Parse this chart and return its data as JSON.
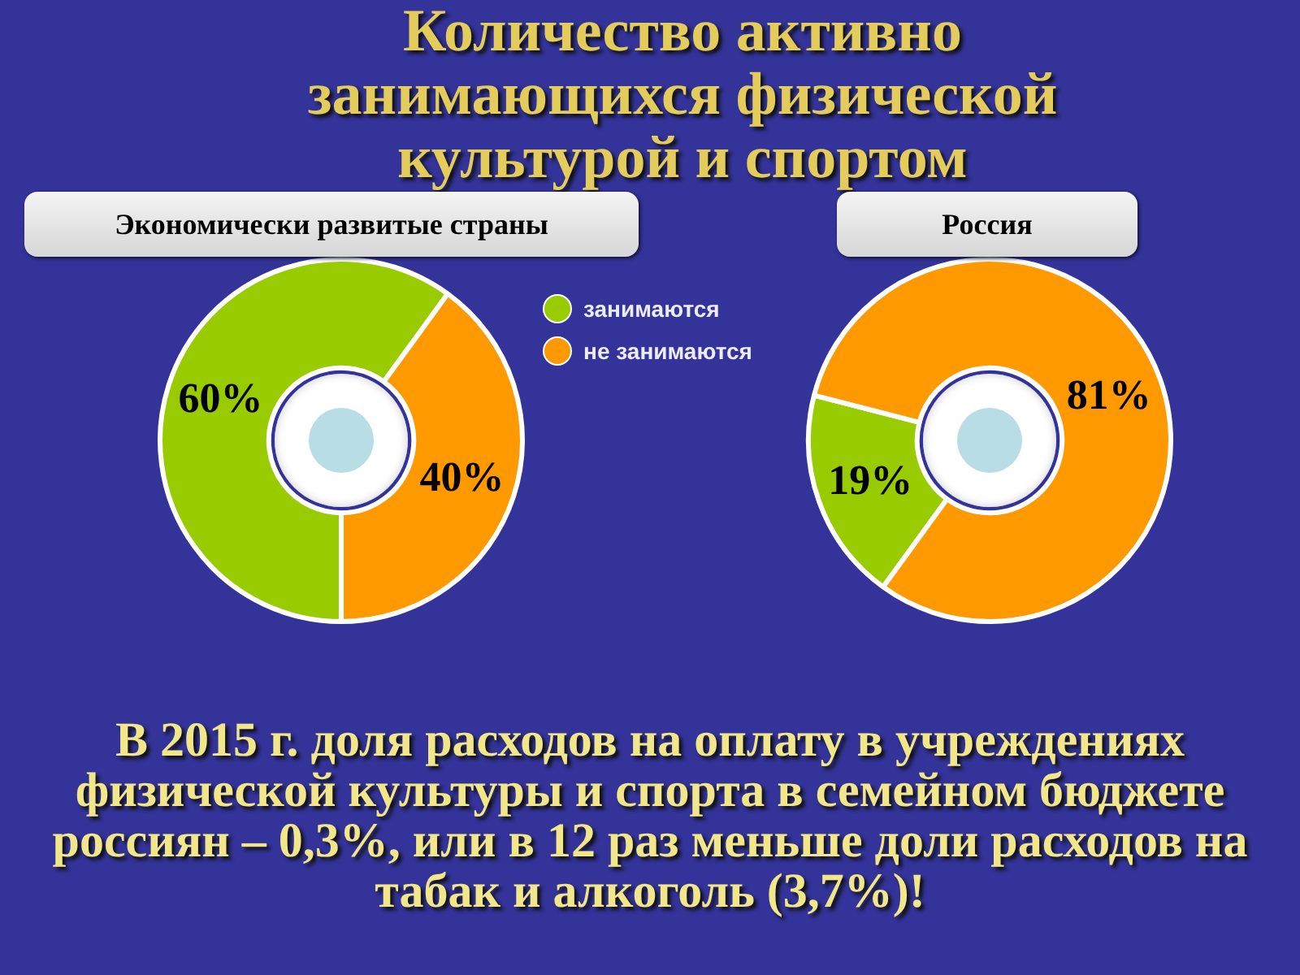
{
  "chart_data": [
    {
      "type": "donut",
      "title": "Количество активно занимающихся физической культурой и спортом",
      "subtitle": "Экономически развитые страны",
      "categories": [
        "занимаются",
        "не занимаются"
      ],
      "values": [
        60,
        40
      ],
      "colors": [
        "#99cc00",
        "#ff9900"
      ],
      "value_labels": [
        "60%",
        "40%"
      ],
      "legend": "right",
      "annotations": [
        "В 2015 г. доля расходов на оплату в учреждениях физической культуры и спорта в семейном бюджете россиян – 0,3%, или в 12 раз меньше доли расходов на табак и алкоголь (3,7%)!"
      ]
    },
    {
      "type": "donut",
      "title": "Россия",
      "categories": [
        null,
        null
      ],
      "values": [
        19,
        81
      ],
      "colors": [
        "#99cc00",
        "#ff9900"
      ],
      "value_labels": [
        "19%",
        "81%"
      ]
    }
  ]
}
